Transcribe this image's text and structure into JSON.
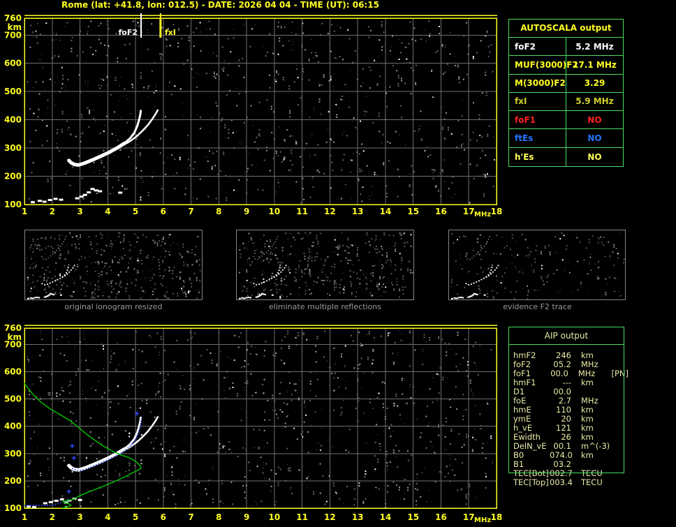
{
  "title": "Rome (lat: +41.8, lon: 012.5) - DATE: 2026 04 04 - TIME (UT): 06:15",
  "colors": {
    "accent_yellow": "#ffff22",
    "table_border_green": "#4ade63",
    "profile_green": "#00bb00",
    "restored_blue": "#2e4bff",
    "trace_white": "#ffffff",
    "grid_gray": "#6f6f6f",
    "aip_text": "#e9e9a6",
    "caption_gray": "#9a9a9a"
  },
  "autoscala_table": {
    "title": "AUTOSCALA output",
    "rows": [
      {
        "label": "foF2",
        "value": "5.2 MHz",
        "color": "#ffffff"
      },
      {
        "label": "MUF(3000)F2",
        "value": "17.1 MHz",
        "color": "#ffff22"
      },
      {
        "label": "M(3000)F2",
        "value": "3.29",
        "color": "#ffff22"
      },
      {
        "label": "fxI",
        "value": "5.9 MHz",
        "color": "#cfcf2a"
      },
      {
        "label": "foF1",
        "value": "NO",
        "color": "#ff2222"
      },
      {
        "label": "ftEs",
        "value": "NO",
        "color": "#2277ff"
      },
      {
        "label": "h'Es",
        "value": "NO",
        "color": "#ffff55"
      }
    ]
  },
  "panels": [
    {
      "caption": "original ionogram resized"
    },
    {
      "caption": "eliminate multiple reflections"
    },
    {
      "caption": "evidence F2 trace"
    }
  ],
  "aip_table": {
    "title": "AIP output",
    "rows": [
      {
        "label": "hmF2",
        "value": "246",
        "unit": "km",
        "extra": ""
      },
      {
        "label": "foF2",
        "value": "05.2",
        "unit": "MHz",
        "extra": ""
      },
      {
        "label": "foF1",
        "value": "00.0",
        "unit": "MHz",
        "extra": "[PN]"
      },
      {
        "label": "hmF1",
        "value": "---",
        "unit": "km",
        "extra": ""
      },
      {
        "label": "D1",
        "value": "00.0",
        "unit": "",
        "extra": ""
      },
      {
        "label": "foE",
        "value": "2.7",
        "unit": "MHz",
        "extra": ""
      },
      {
        "label": "hmE",
        "value": "110",
        "unit": "km",
        "extra": ""
      },
      {
        "label": "ymE",
        "value": "20",
        "unit": "km",
        "extra": ""
      },
      {
        "label": "h_vE",
        "value": "121",
        "unit": "km",
        "extra": ""
      },
      {
        "label": "Ewidth",
        "value": "26",
        "unit": "km",
        "extra": ""
      },
      {
        "label": "DelN_vE",
        "value": "00.1",
        "unit": "m^(-3)",
        "extra": ""
      },
      {
        "label": "B0",
        "value": "074.0",
        "unit": "km",
        "extra": ""
      },
      {
        "label": "B1",
        "value": "03.2",
        "unit": "",
        "extra": ""
      },
      {
        "label": "TEC[Bot]",
        "value": "002.7",
        "unit": "TECU",
        "extra": ""
      },
      {
        "label": "TEC[Top]",
        "value": "003.4",
        "unit": "TECU",
        "extra": ""
      }
    ]
  },
  "chart_data": [
    {
      "type": "scatter",
      "name": "autoscaled ionogram",
      "xlabel": "MHz",
      "ylabel": "km",
      "xlim": [
        1,
        18
      ],
      "ylim": [
        100,
        760
      ],
      "x_ticks": [
        "1",
        "2",
        "3",
        "4",
        "5",
        "6",
        "7",
        "8",
        "9",
        "10",
        "11",
        "12",
        "13",
        "14",
        "15",
        "16",
        "17",
        "18"
      ],
      "y_ticks": [
        "760",
        "700",
        "600",
        "500",
        "400",
        "300",
        "200",
        "100"
      ],
      "grid": true,
      "legend": "none",
      "markers": [
        {
          "label": "foF2",
          "x": 5.2,
          "color": "#ffffff"
        },
        {
          "label": "fxI",
          "x": 5.9,
          "color": "#ffff22"
        }
      ],
      "series": [
        {
          "name": "F2-O-trace",
          "style": "band",
          "color": "#ffffff",
          "points": [
            [
              2.6,
              256
            ],
            [
              2.68,
              248
            ],
            [
              2.8,
              242
            ],
            [
              2.95,
              240
            ],
            [
              3.15,
              246
            ],
            [
              3.45,
              258
            ],
            [
              3.75,
              271
            ],
            [
              4.05,
              285
            ],
            [
              4.35,
              301
            ],
            [
              4.6,
              317
            ],
            [
              4.8,
              334
            ],
            [
              4.95,
              353
            ],
            [
              5.06,
              377
            ],
            [
              5.13,
              400
            ],
            [
              5.17,
              418
            ],
            [
              5.19,
              432
            ]
          ]
        },
        {
          "name": "F2-X-trace",
          "style": "band2",
          "color": "#ffffff",
          "points": [
            [
              4.55,
              310
            ],
            [
              4.8,
              324
            ],
            [
              5.05,
              342
            ],
            [
              5.25,
              361
            ],
            [
              5.45,
              382
            ],
            [
              5.6,
              402
            ],
            [
              5.72,
              420
            ],
            [
              5.8,
              434
            ]
          ]
        },
        {
          "name": "Es-trace",
          "style": "dash",
          "color": "#ffffff",
          "points": [
            [
              1.3,
              108
            ],
            [
              1.55,
              113
            ],
            [
              1.72,
              110
            ],
            [
              1.92,
              116
            ],
            [
              2.12,
              120
            ],
            [
              2.32,
              117
            ],
            [
              2.9,
              122
            ],
            [
              3.05,
              128
            ],
            [
              3.18,
              134
            ],
            [
              3.32,
              143
            ],
            [
              3.45,
              155
            ],
            [
              3.58,
              150
            ],
            [
              3.72,
              147
            ],
            [
              4.45,
              142
            ]
          ]
        }
      ]
    },
    {
      "type": "scatter",
      "name": "ionogram with restored trace and electron density profile",
      "xlabel": "MHz",
      "ylabel": "km",
      "xlim": [
        1,
        18
      ],
      "ylim": [
        100,
        760
      ],
      "x_ticks": [
        "1",
        "2",
        "3",
        "4",
        "5",
        "6",
        "7",
        "8",
        "9",
        "10",
        "11",
        "12",
        "13",
        "14",
        "15",
        "16",
        "17",
        "18"
      ],
      "y_ticks": [
        "760",
        "700",
        "600",
        "500",
        "400",
        "300",
        "200",
        "100"
      ],
      "grid": true,
      "legend": "none",
      "markers": [],
      "series": [
        {
          "name": "F2-O-trace",
          "style": "band",
          "color": "#ffffff",
          "points": [
            [
              2.6,
              256
            ],
            [
              2.68,
              248
            ],
            [
              2.8,
              242
            ],
            [
              2.95,
              240
            ],
            [
              3.15,
              246
            ],
            [
              3.45,
              258
            ],
            [
              3.75,
              271
            ],
            [
              4.05,
              285
            ],
            [
              4.35,
              301
            ],
            [
              4.6,
              317
            ],
            [
              4.8,
              334
            ],
            [
              4.95,
              353
            ],
            [
              5.06,
              377
            ],
            [
              5.13,
              400
            ],
            [
              5.17,
              418
            ],
            [
              5.19,
              432
            ]
          ]
        },
        {
          "name": "F2-X-trace",
          "style": "band2",
          "color": "#ffffff",
          "points": [
            [
              4.55,
              310
            ],
            [
              4.8,
              324
            ],
            [
              5.05,
              342
            ],
            [
              5.25,
              361
            ],
            [
              5.45,
              382
            ],
            [
              5.6,
              402
            ],
            [
              5.72,
              420
            ],
            [
              5.8,
              434
            ]
          ]
        },
        {
          "name": "Es-trace",
          "style": "dash",
          "color": "#ffffff",
          "points": [
            [
              1.15,
              106
            ],
            [
              1.35,
              104
            ],
            [
              1.75,
              118
            ],
            [
              1.95,
              122
            ],
            [
              2.15,
              127
            ],
            [
              2.35,
              132
            ],
            [
              2.5,
              120
            ],
            [
              2.62,
              128
            ],
            [
              2.8,
              135
            ],
            [
              3.0,
              130
            ]
          ]
        },
        {
          "name": "restored-E-trace",
          "style": "dotline",
          "color": "#2e4bff",
          "points": [
            [
              1.0,
              110
            ],
            [
              2.0,
              110
            ],
            [
              2.1,
              113
            ],
            [
              2.3,
              119
            ],
            [
              2.5,
              127
            ],
            [
              2.62,
              134
            ]
          ]
        },
        {
          "name": "restored-F-trace",
          "style": "dotline",
          "color": "#2e4bff",
          "points": [
            [
              2.72,
              246
            ],
            [
              2.85,
              239
            ],
            [
              3.0,
              237
            ],
            [
              3.2,
              243
            ],
            [
              3.5,
              255
            ],
            [
              3.85,
              270
            ],
            [
              4.2,
              287
            ],
            [
              4.55,
              306
            ],
            [
              4.85,
              330
            ],
            [
              5.02,
              355
            ],
            [
              5.12,
              380
            ],
            [
              5.18,
              405
            ],
            [
              5.21,
              430
            ]
          ]
        },
        {
          "name": "restored-points",
          "style": "plus",
          "color": "#2e4bff",
          "points": [
            [
              2.6,
              161
            ],
            [
              2.72,
              328
            ],
            [
              2.78,
              284
            ],
            [
              5.05,
              447
            ]
          ]
        },
        {
          "name": "electron-density-profile",
          "style": "line",
          "color": "#00bb00",
          "points": [
            [
              2.35,
              100
            ],
            [
              2.52,
              104
            ],
            [
              2.68,
              110
            ],
            [
              2.6,
              116
            ],
            [
              2.44,
              120
            ],
            [
              2.38,
              124
            ],
            [
              2.52,
              128
            ],
            [
              2.72,
              131
            ],
            [
              3.0,
              146
            ],
            [
              3.3,
              159
            ],
            [
              3.62,
              172
            ],
            [
              3.95,
              185
            ],
            [
              4.3,
              200
            ],
            [
              4.62,
              215
            ],
            [
              4.9,
              230
            ],
            [
              5.1,
              240
            ],
            [
              5.2,
              246
            ],
            [
              5.17,
              255
            ],
            [
              5.05,
              268
            ],
            [
              4.8,
              284
            ],
            [
              4.45,
              296
            ],
            [
              4.15,
              310
            ],
            [
              3.85,
              327
            ],
            [
              3.55,
              348
            ],
            [
              3.25,
              370
            ],
            [
              2.95,
              396
            ],
            [
              2.65,
              420
            ],
            [
              2.3,
              442
            ],
            [
              1.95,
              462
            ],
            [
              1.6,
              488
            ],
            [
              1.3,
              518
            ],
            [
              1.08,
              545
            ],
            [
              1.0,
              558
            ]
          ]
        }
      ]
    }
  ]
}
